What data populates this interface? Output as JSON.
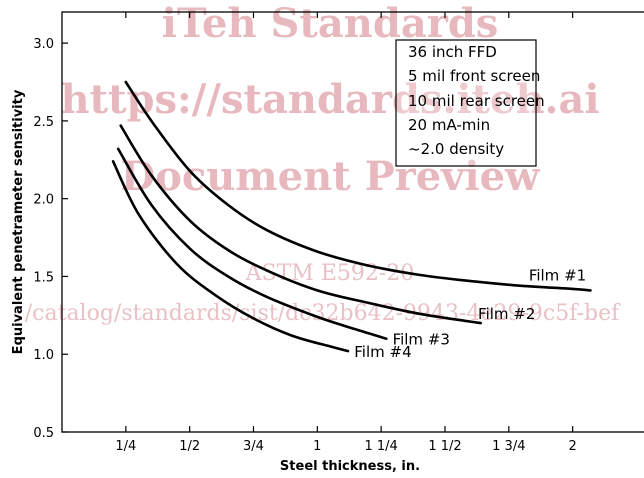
{
  "watermark": {
    "line1": "iTeh Standards",
    "line2": "https://standards.iteh.ai",
    "line3": "Document Preview",
    "line4": "ASTM E592-20",
    "line5": "/catalog/standards/sist/dc32b642-9943-4e29-9c5f-bef"
  },
  "chart_data": {
    "type": "line",
    "xlabel": "Steel thickness, in.",
    "ylabel": "Equivalent penetrameter sensitivity",
    "xlim": [
      0,
      2.35
    ],
    "ylim": [
      0.5,
      3.2
    ],
    "x_ticks": [
      0.25,
      0.5,
      0.75,
      1.0,
      1.25,
      1.5,
      1.75,
      2.0
    ],
    "x_tick_labels": [
      "1/4",
      "1/2",
      "3/4",
      "1",
      "1 1/4",
      "1 1/2",
      "1 3/4",
      "2"
    ],
    "y_ticks": [
      0.5,
      1.0,
      1.5,
      2.0,
      2.5,
      3.0
    ],
    "y_tick_labels": [
      "0.5",
      "1.0",
      "1.5",
      "2.0",
      "2.5",
      "3.0"
    ],
    "grid": false,
    "info_box": [
      "36 inch FFD",
      "5 mil front screen",
      "10 mil rear screen",
      "20 mA-min",
      "~2.0 density"
    ],
    "series": [
      {
        "name": "Film #1",
        "x": [
          0.25,
          0.35,
          0.5,
          0.65,
          0.8,
          1.0,
          1.2,
          1.4,
          1.6,
          1.8,
          2.0,
          2.07
        ],
        "y": [
          2.75,
          2.5,
          2.18,
          1.96,
          1.8,
          1.66,
          1.57,
          1.51,
          1.47,
          1.44,
          1.42,
          1.41
        ]
      },
      {
        "name": "Film #2",
        "x": [
          0.23,
          0.35,
          0.5,
          0.65,
          0.8,
          1.0,
          1.2,
          1.4,
          1.6,
          1.64
        ],
        "y": [
          2.47,
          2.15,
          1.86,
          1.67,
          1.54,
          1.41,
          1.33,
          1.26,
          1.21,
          1.2
        ]
      },
      {
        "name": "Film #3",
        "x": [
          0.22,
          0.35,
          0.5,
          0.65,
          0.8,
          1.0,
          1.15,
          1.27
        ],
        "y": [
          2.32,
          1.96,
          1.68,
          1.5,
          1.37,
          1.24,
          1.16,
          1.1
        ]
      },
      {
        "name": "Film #4",
        "x": [
          0.2,
          0.3,
          0.45,
          0.6,
          0.75,
          0.9,
          1.05,
          1.12
        ],
        "y": [
          2.24,
          1.9,
          1.58,
          1.38,
          1.23,
          1.12,
          1.05,
          1.02
        ]
      }
    ]
  }
}
